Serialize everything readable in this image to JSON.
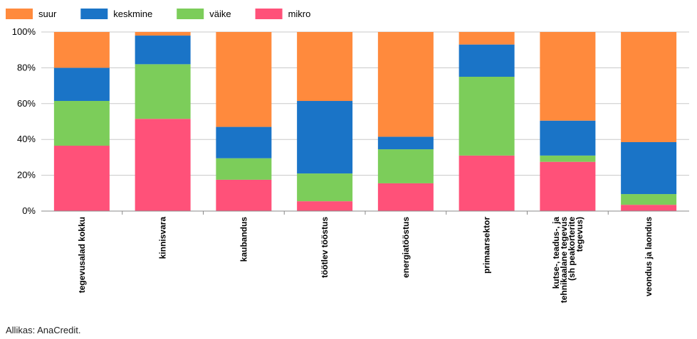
{
  "chart_data": {
    "type": "bar",
    "stacked": true,
    "percent": true,
    "title": "",
    "xlabel": "",
    "ylabel": "",
    "ylim": [
      0,
      100
    ],
    "y_ticks": [
      "0%",
      "20%",
      "40%",
      "60%",
      "80%",
      "100%"
    ],
    "grid": true,
    "legend_position": "top-left",
    "categories": [
      [
        "tegevusalad kokku"
      ],
      [
        "kinnisvara"
      ],
      [
        "kaubandus"
      ],
      [
        "töötlev tööstus"
      ],
      [
        "energiatööstus"
      ],
      [
        "primaarsektor"
      ],
      [
        "kutse-, teadus-, ja",
        "tehnikaalane tegevus",
        "(sh peakorterite",
        "tegevus)"
      ],
      [
        "veondus ja laondus"
      ]
    ],
    "series": [
      {
        "name": "mikro",
        "color": "#ff5179",
        "values": [
          36.5,
          51.5,
          17.5,
          5.5,
          15.5,
          31.0,
          27.5,
          3.5
        ]
      },
      {
        "name": "väike",
        "color": "#7ccd5a",
        "values": [
          25.0,
          30.5,
          12.0,
          15.5,
          19.0,
          44.0,
          3.5,
          6.0
        ]
      },
      {
        "name": "keskmine",
        "color": "#1a74c7",
        "values": [
          18.5,
          16.0,
          17.5,
          40.5,
          7.0,
          18.0,
          19.5,
          29.0
        ]
      },
      {
        "name": "suur",
        "color": "#ff8a3d",
        "values": [
          20.0,
          2.0,
          53.0,
          38.5,
          58.5,
          7.0,
          49.5,
          61.5
        ]
      }
    ],
    "legend_order": [
      "suur",
      "keskmine",
      "väike",
      "mikro"
    ]
  },
  "source_note": "Allikas: AnaCredit."
}
